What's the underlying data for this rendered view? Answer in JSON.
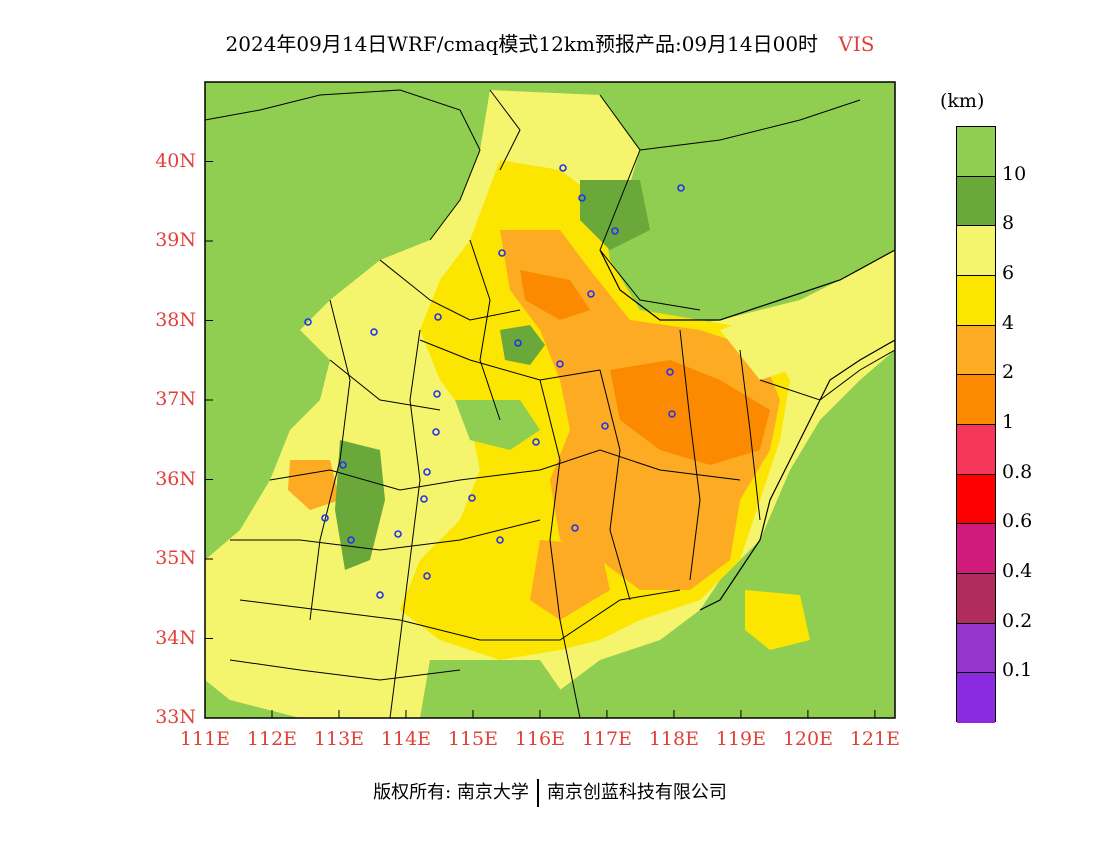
{
  "title": {
    "main": "2024年09月14日WRF/cmaq模式12km预报产品:09月14日00时",
    "variable": "VIS"
  },
  "map": {
    "lat_labels": [
      "40N",
      "39N",
      "38N",
      "37N",
      "36N",
      "35N",
      "34N",
      "33N"
    ],
    "lon_labels": [
      "111E",
      "112E",
      "113E",
      "114E",
      "115E",
      "116E",
      "117E",
      "118E",
      "119E",
      "120E",
      "121E"
    ],
    "extent": {
      "lon": [
        111,
        121.3
      ],
      "lat": [
        33,
        41
      ]
    }
  },
  "legend": {
    "unit": "(km)",
    "labels": [
      "10",
      "8",
      "6",
      "4",
      "2",
      "1",
      "0.8",
      "0.6",
      "0.4",
      "0.2",
      "0.1"
    ],
    "colors": [
      "#8fce50",
      "#6aa83a",
      "#f4f56c",
      "#fce500",
      "#fdab22",
      "#fb8a00",
      "#f4375a",
      "#fe0000",
      "#d01a7c",
      "#b02c5a",
      "#9635cb",
      "#8a2be2"
    ]
  },
  "palette": {
    "ocean": "#8fce50",
    "land_base": "#f0f070",
    "border": "#000000",
    "city_marker": "#2233ee"
  },
  "footer": {
    "left": "版权所有: 南京大学",
    "right": "南京创蓝科技有限公司"
  }
}
